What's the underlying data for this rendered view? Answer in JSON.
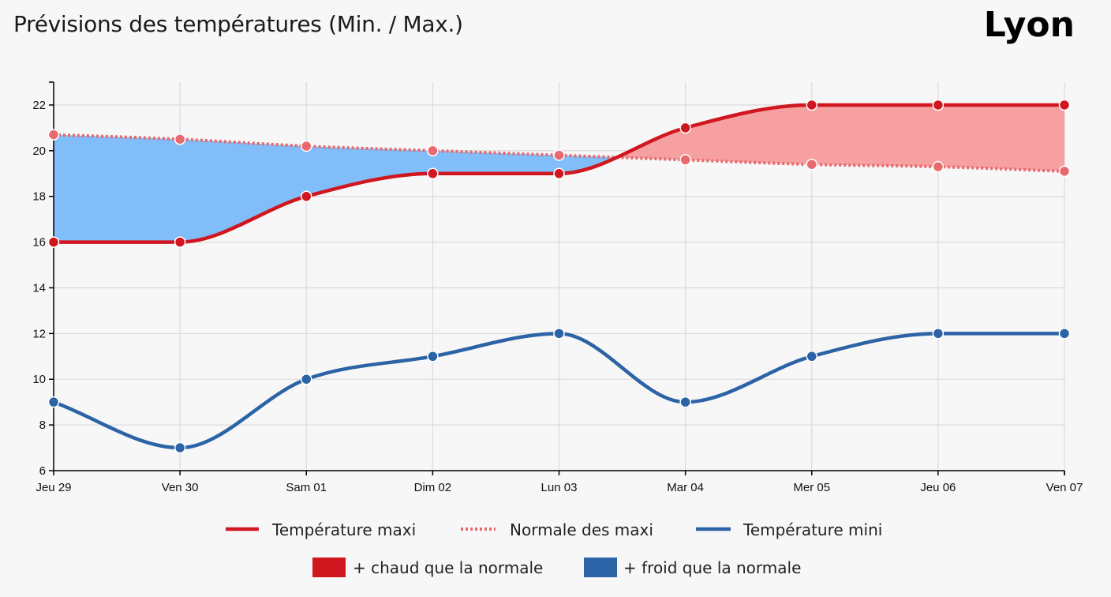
{
  "header": {
    "title": "Prévisions des températures (Min. / Max.)",
    "city": "Lyon"
  },
  "chart_data": {
    "type": "line",
    "x": [
      "Jeu 29",
      "Ven 30",
      "Sam 01",
      "Dim 02",
      "Lun 03",
      "Mar 04",
      "Mer 05",
      "Jeu 06",
      "Ven 07"
    ],
    "ylim": [
      6,
      23
    ],
    "yticks": [
      6,
      8,
      10,
      12,
      14,
      16,
      18,
      20,
      22
    ],
    "grid": true,
    "series": [
      {
        "name": "Température maxi",
        "values": [
          16,
          16,
          18,
          19,
          19,
          21,
          22,
          22,
          22
        ],
        "color": "#d0161e",
        "style": "solid"
      },
      {
        "name": "Normale des maxi",
        "values": [
          20.7,
          20.5,
          20.2,
          20.0,
          19.8,
          19.6,
          19.4,
          19.3,
          19.1
        ],
        "color": "#e86a6e",
        "style": "dotted"
      },
      {
        "name": "Température mini",
        "values": [
          9,
          7,
          10,
          11,
          12,
          9,
          11,
          12,
          12
        ],
        "color": "#2b63a6",
        "style": "solid"
      }
    ],
    "areas": [
      {
        "name": "+ chaud que la normale",
        "color": "#d0161e",
        "fill": "#f7a0a2"
      },
      {
        "name": "+ froid que la normale",
        "color": "#2b63a6",
        "fill": "#80bdf9"
      }
    ],
    "legend_position": "bottom"
  }
}
